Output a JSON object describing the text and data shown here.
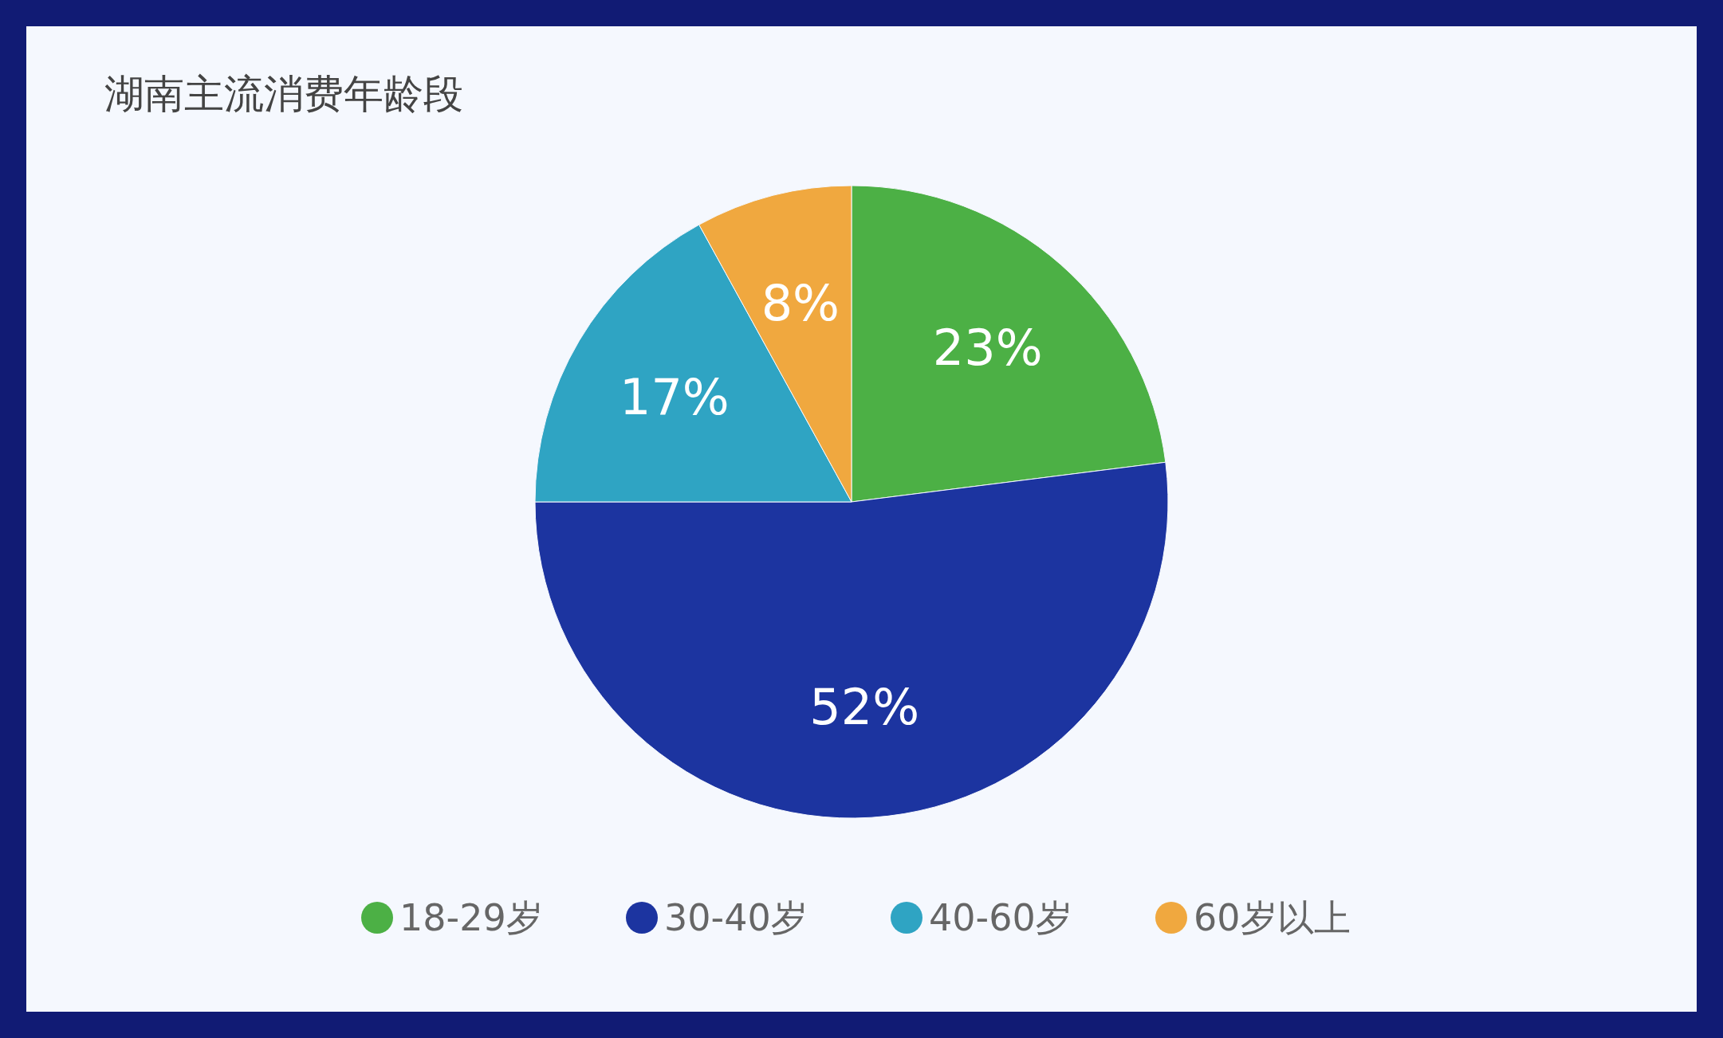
{
  "chart_data": {
    "type": "pie",
    "title": "湖南主流消费年龄段",
    "categories": [
      "18-29岁",
      "30-40岁",
      "40-60岁",
      "60岁以上"
    ],
    "values": [
      23,
      52,
      17,
      8
    ],
    "value_labels": [
      "23%",
      "52%",
      "17%",
      "8%"
    ],
    "colors": [
      "#4cb045",
      "#1c34a0",
      "#2fa4c3",
      "#f0a83f"
    ],
    "legend": "bottom"
  }
}
